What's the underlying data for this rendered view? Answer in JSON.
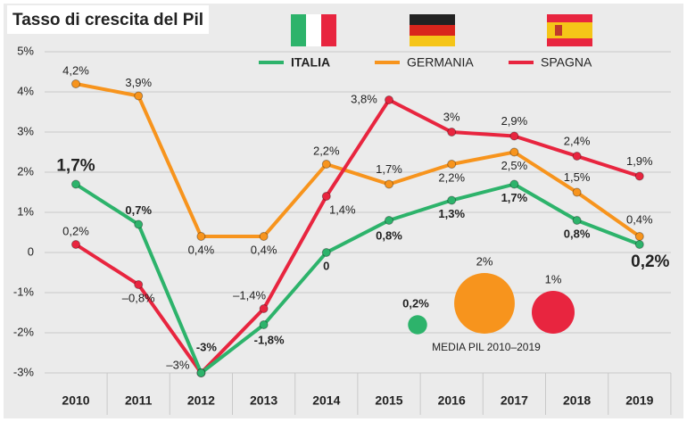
{
  "chart_data": {
    "type": "line",
    "title": "Tasso di crescita del Pil",
    "categories": [
      "2010",
      "2011",
      "2012",
      "2013",
      "2014",
      "2015",
      "2016",
      "2017",
      "2018",
      "2019"
    ],
    "series": [
      {
        "name": "ITALIA",
        "color": "#2db36b",
        "values": [
          1.7,
          0.7,
          -3,
          -1.8,
          0,
          0.8,
          1.3,
          1.7,
          0.8,
          0.2
        ],
        "value_labels": [
          "1,7%",
          "0,7%",
          "-3%",
          "-1,8%",
          "0",
          "0,8%",
          "1,3%",
          "1,7%",
          "0,8%",
          "0,2%"
        ]
      },
      {
        "name": "GERMANIA",
        "color": "#f7941d",
        "values": [
          4.2,
          3.9,
          0.4,
          0.4,
          2.2,
          1.7,
          2.2,
          2.5,
          1.5,
          0.4
        ],
        "value_labels": [
          "4,2%",
          "3,9%",
          "0,4%",
          "0,4%",
          "2,2%",
          "1,7%",
          "2,2%",
          "2,5%",
          "1,5%",
          "0,4%"
        ]
      },
      {
        "name": "SPAGNA",
        "color": "#e8253f",
        "values": [
          0.2,
          -0.8,
          -3,
          -1.4,
          1.4,
          3.8,
          3,
          2.9,
          2.4,
          1.9
        ],
        "value_labels": [
          "0,2%",
          "–0,8%",
          "–3%",
          "–1,4%",
          "1,4%",
          "3,8%",
          "3%",
          "2,9%",
          "2,4%",
          "1,9%"
        ]
      }
    ],
    "ylim": [
      -3,
      5
    ],
    "yticks": [
      {
        "value": 5,
        "label": "5%"
      },
      {
        "value": 4,
        "label": "4%"
      },
      {
        "value": 3,
        "label": "3%"
      },
      {
        "value": 2,
        "label": "2%"
      },
      {
        "value": 1,
        "label": "1%"
      },
      0,
      {
        "value": -1,
        "label": "-1%"
      },
      {
        "value": -2,
        "label": "-2%"
      },
      {
        "value": -3,
        "label": "-3%"
      }
    ],
    "grid": true,
    "averages": {
      "title": "MEDIA PIL 2010–2019",
      "values": [
        0.2,
        2,
        1
      ],
      "value_labels": [
        "0,2%",
        "2%",
        "1%"
      ]
    }
  }
}
